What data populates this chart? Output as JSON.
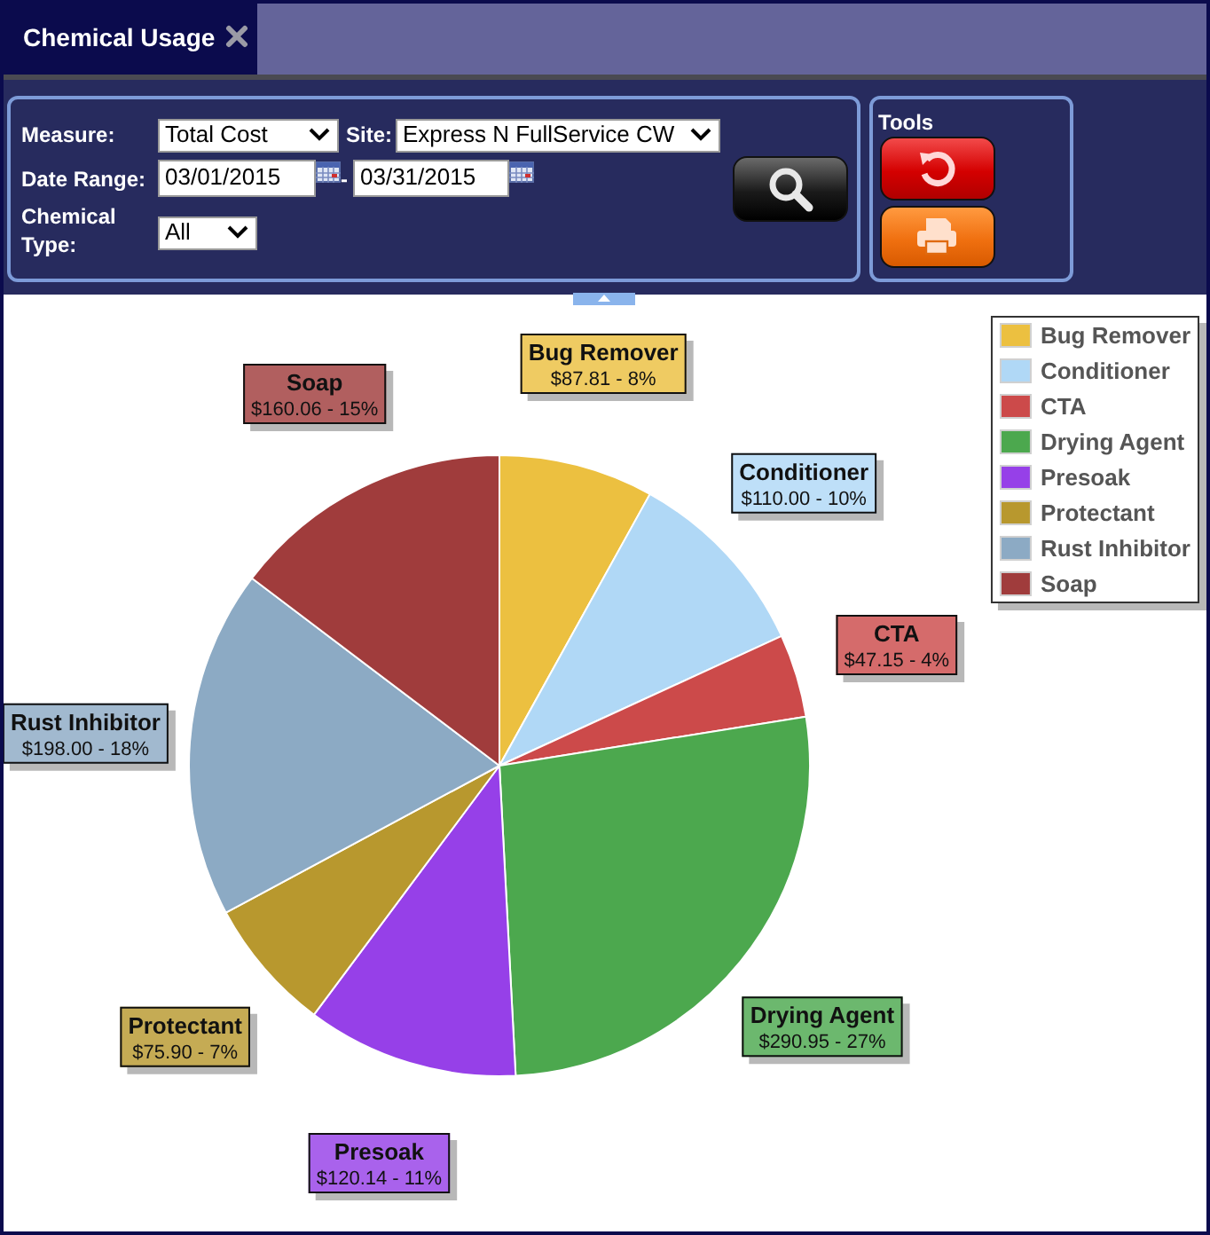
{
  "chart_data": {
    "type": "pie",
    "title": "Chemical Usage",
    "categories": [
      "Bug Remover",
      "Conditioner",
      "CTA",
      "Drying Agent",
      "Presoak",
      "Protectant",
      "Rust Inhibitor",
      "Soap"
    ],
    "values": [
      87.81,
      110.0,
      47.15,
      290.95,
      120.14,
      75.9,
      198.0,
      160.06
    ],
    "colors": [
      "#ecc040",
      "#b0d8f6",
      "#cc4a4a",
      "#4ca84e",
      "#9640e8",
      "#b8982e",
      "#8caac4",
      "#a03c3c"
    ],
    "value_labels": [
      "$87.81 - 8%",
      "$110.00 - 10%",
      "$47.15 - 4%",
      "$290.95 - 27%",
      "$120.14 - 11%",
      "$75.90 - 7%",
      "$198.00 - 18%",
      "$160.06 - 15%"
    ],
    "legend": "top right",
    "annotations": [
      "Measure:",
      "Total Cost",
      "Site:",
      "Express N FullService CW",
      "Date Range:",
      "03/01/2015",
      "-",
      "03/31/2015",
      "Chemical Type:",
      "All",
      "Tools"
    ]
  }
}
